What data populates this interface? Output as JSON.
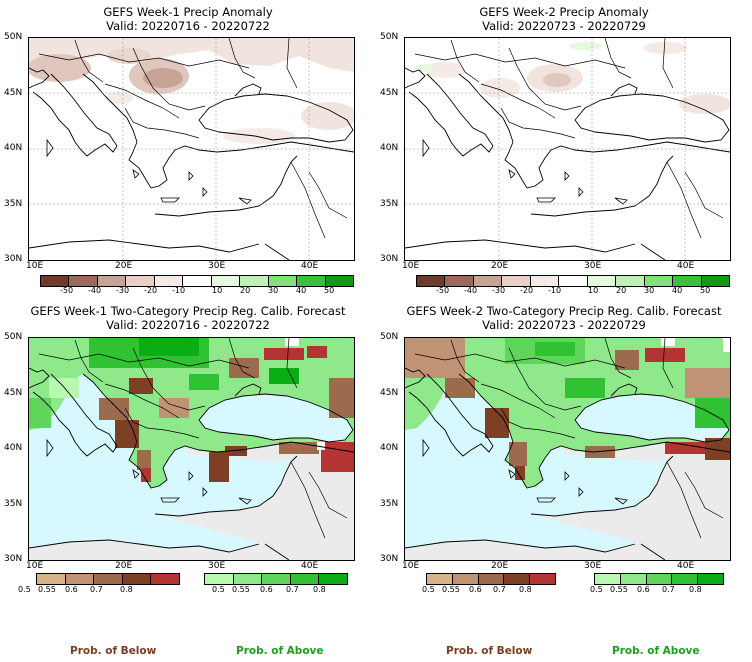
{
  "colors": {
    "sea_prob": "#d8f8ff",
    "grey_land": "#ebebeb",
    "dry_ramp": [
      "#d9b489",
      "#bf9373",
      "#9c6a4d",
      "#7e4025",
      "#b43434"
    ],
    "wet_ramp": [
      "#b8f8b0",
      "#8fe98b",
      "#5fd55c",
      "#30c232",
      "#0aad13"
    ],
    "anom_neg": [
      "#6e3b2c",
      "#9a6a5a",
      "#c7a396",
      "#e8d0c8",
      "#f5eae6"
    ],
    "anom_pos": [
      "#e4f9e0",
      "#bff0b6",
      "#82e27a",
      "#38c23a",
      "#129a16"
    ]
  },
  "panels": {
    "top_left": {
      "title": "GEFS Week-1 Precip Anomaly",
      "valid": "Valid: 20220716 - 20220722"
    },
    "top_right": {
      "title": "GEFS Week-2 Precip Anomaly",
      "valid": "Valid: 20220723 - 20220729"
    },
    "bottom_left": {
      "title": "GEFS Week-1 Two-Category Precip Reg. Calib. Forecast",
      "valid": "Valid: 20220716 - 20220722"
    },
    "bottom_right": {
      "title": "GEFS Week-2 Two-Category Precip Reg. Calib. Forecast",
      "valid": "Valid: 20220723 - 20220729"
    }
  },
  "axes": {
    "lat_labels": [
      "50N",
      "45N",
      "40N",
      "35N",
      "30N"
    ],
    "lon_labels": [
      "10E",
      "20E",
      "30E",
      "40E"
    ]
  },
  "anomaly_colorbar": {
    "ticks": [
      "-50",
      "-40",
      "-30",
      "-20",
      "-10",
      "10",
      "20",
      "30",
      "40",
      "50"
    ]
  },
  "prob_colorbar": {
    "below_ticks": [
      "0.5",
      "0.55",
      "0.6",
      "0.7",
      "0.8"
    ],
    "above_ticks": [
      "0.5",
      "0.55",
      "0.6",
      "0.7",
      "0.8"
    ],
    "below_label": "Prob. of Below",
    "above_label": "Prob. of Above"
  }
}
